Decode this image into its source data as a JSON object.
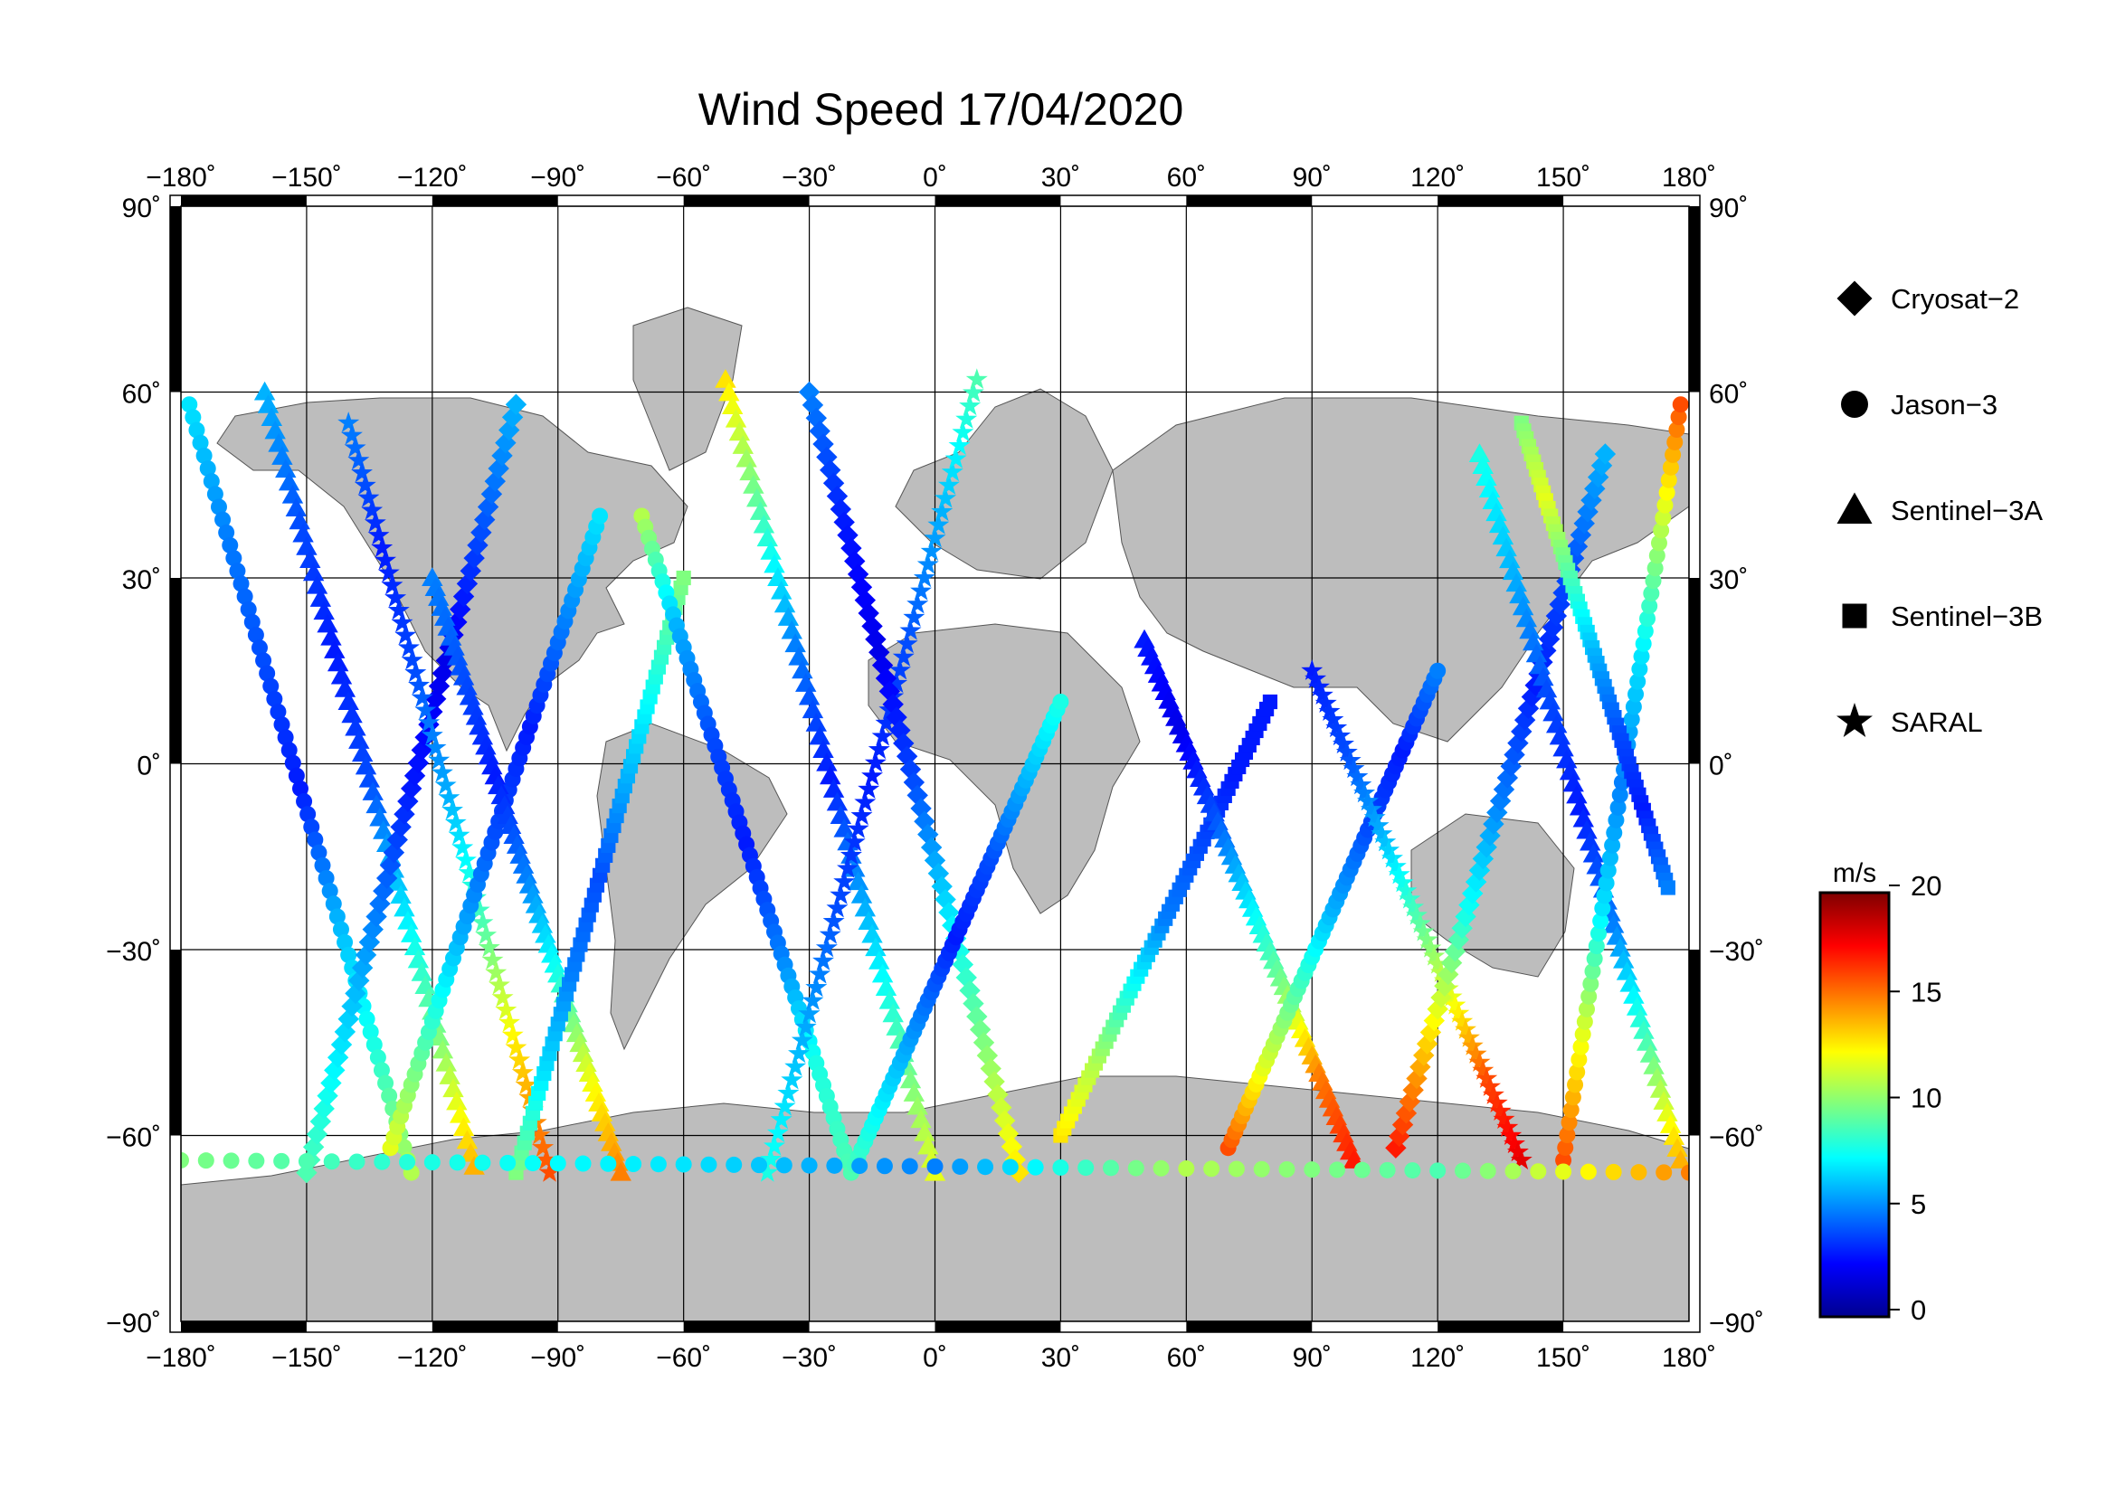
{
  "title": "Wind Speed 17/04/2020",
  "map": {
    "lon_range": [
      -180,
      180
    ],
    "lat_range": [
      -90,
      90
    ],
    "lon_ticks": [
      -180,
      -150,
      -120,
      -90,
      -60,
      -30,
      0,
      30,
      60,
      90,
      120,
      150,
      180
    ],
    "lat_ticks": [
      90,
      60,
      30,
      0,
      -30,
      -60,
      -90
    ],
    "lon_tick_labels": [
      "−180˚",
      "−150˚",
      "−120˚",
      "−90˚",
      "−60˚",
      "−30˚",
      "0˚",
      "30˚",
      "60˚",
      "90˚",
      "120˚",
      "150˚",
      "180˚"
    ],
    "lat_tick_labels": [
      "90˚",
      "60˚",
      "30˚",
      "0˚",
      "−30˚",
      "−60˚",
      "−90˚"
    ],
    "land_color": "#bdbdbd",
    "ocean_color": "#ffffff",
    "grid": true
  },
  "legend": {
    "placement": "right",
    "items": [
      {
        "label": "Cryosat−2",
        "marker": "diamond"
      },
      {
        "label": "Jason−3",
        "marker": "circle"
      },
      {
        "label": "Sentinel−3A",
        "marker": "triangle"
      },
      {
        "label": "Sentinel−3B",
        "marker": "square"
      },
      {
        "label": "SARAL",
        "marker": "star"
      }
    ]
  },
  "colorbar": {
    "unit": "m/s",
    "min": 0,
    "max": 20,
    "ticks": [
      0,
      5,
      10,
      15,
      20
    ],
    "colormap": "jet",
    "colors": [
      "#00008f",
      "#0000ff",
      "#007fff",
      "#00ffff",
      "#7fff7f",
      "#ffff00",
      "#ff7f00",
      "#ff0000",
      "#7f0000"
    ]
  },
  "chart_data": {
    "type": "scatter",
    "title": "Wind Speed 17/04/2020",
    "x_label": "",
    "y_label": "",
    "xlim": [
      -180,
      180
    ],
    "ylim": [
      -90,
      90
    ],
    "value_unit": "m/s",
    "value_range": [
      0,
      20
    ],
    "series": [
      {
        "name": "Cryosat−2",
        "marker": "diamond"
      },
      {
        "name": "Jason−3",
        "marker": "circle"
      },
      {
        "name": "Sentinel−3A",
        "marker": "triangle"
      },
      {
        "name": "Sentinel−3B",
        "marker": "square"
      },
      {
        "name": "SARAL",
        "marker": "star"
      }
    ],
    "tracks": [
      {
        "series": 1,
        "lon0": -178,
        "lat0": 58,
        "lon1": -125,
        "lat1": -66,
        "v": [
          7,
          5,
          4,
          3,
          6,
          8,
          11
        ]
      },
      {
        "series": 2,
        "lon0": -160,
        "lat0": 60,
        "lon1": -110,
        "lat1": -65,
        "v": [
          6,
          4,
          3,
          4,
          7,
          10,
          14
        ]
      },
      {
        "series": 0,
        "lon0": -150,
        "lat0": -66,
        "lon1": -100,
        "lat1": 58,
        "v": [
          9,
          7,
          5,
          3,
          2,
          4,
          6
        ]
      },
      {
        "series": 4,
        "lon0": -140,
        "lat0": 55,
        "lon1": -92,
        "lat1": -66,
        "v": [
          5,
          3,
          4,
          6,
          9,
          13,
          16
        ]
      },
      {
        "series": 1,
        "lon0": -130,
        "lat0": -62,
        "lon1": -80,
        "lat1": 40,
        "v": [
          12,
          9,
          6,
          4,
          3,
          5,
          7
        ]
      },
      {
        "series": 2,
        "lon0": -120,
        "lat0": 30,
        "lon1": -75,
        "lat1": -66,
        "v": [
          5,
          4,
          3,
          5,
          8,
          12,
          15
        ]
      },
      {
        "series": 3,
        "lon0": -100,
        "lat0": -66,
        "lon1": -60,
        "lat1": 30,
        "v": [
          10,
          7,
          5,
          4,
          6,
          8,
          10
        ]
      },
      {
        "series": 1,
        "lon0": -70,
        "lat0": 40,
        "lon1": -20,
        "lat1": -66,
        "v": [
          11,
          6,
          4,
          3,
          5,
          8,
          9
        ]
      },
      {
        "series": 2,
        "lon0": -50,
        "lat0": 62,
        "lon1": 0,
        "lat1": -66,
        "v": [
          13,
          9,
          5,
          3,
          6,
          9,
          12
        ]
      },
      {
        "series": 4,
        "lon0": -40,
        "lat0": -66,
        "lon1": 10,
        "lat1": 62,
        "v": [
          8,
          6,
          4,
          3,
          4,
          6,
          9
        ]
      },
      {
        "series": 0,
        "lon0": -30,
        "lat0": 60,
        "lon1": 20,
        "lat1": -66,
        "v": [
          5,
          3,
          2,
          4,
          7,
          10,
          13
        ]
      },
      {
        "series": 1,
        "lon0": -20,
        "lat0": -66,
        "lon1": 30,
        "lat1": 10,
        "v": [
          9,
          7,
          5,
          3,
          4,
          6,
          8
        ]
      },
      {
        "series": 3,
        "lon0": 30,
        "lat0": -60,
        "lon1": 80,
        "lat1": 10,
        "v": [
          13,
          11,
          8,
          5,
          4,
          3,
          3
        ]
      },
      {
        "series": 2,
        "lon0": 50,
        "lat0": 20,
        "lon1": 100,
        "lat1": -64,
        "v": [
          3,
          2,
          4,
          7,
          10,
          15,
          17
        ]
      },
      {
        "series": 1,
        "lon0": 70,
        "lat0": -62,
        "lon1": 120,
        "lat1": 15,
        "v": [
          16,
          12,
          9,
          6,
          4,
          3,
          5
        ]
      },
      {
        "series": 4,
        "lon0": 90,
        "lat0": 15,
        "lon1": 140,
        "lat1": -64,
        "v": [
          3,
          4,
          6,
          9,
          12,
          16,
          18
        ]
      },
      {
        "series": 0,
        "lon0": 110,
        "lat0": -62,
        "lon1": 160,
        "lat1": 50,
        "v": [
          17,
          13,
          8,
          5,
          3,
          4,
          6
        ]
      },
      {
        "series": 2,
        "lon0": 130,
        "lat0": 50,
        "lon1": 178,
        "lat1": -64,
        "v": [
          8,
          6,
          4,
          3,
          5,
          9,
          14
        ]
      },
      {
        "series": 1,
        "lon0": 150,
        "lat0": -64,
        "lon1": 178,
        "lat1": 58,
        "v": [
          16,
          12,
          7,
          5,
          7,
          11,
          16
        ]
      },
      {
        "series": 3,
        "lon0": 140,
        "lat0": 55,
        "lon1": 175,
        "lat1": -20,
        "v": [
          10,
          12,
          9,
          6,
          4,
          3,
          5
        ]
      },
      {
        "series": 1,
        "lon0": -180,
        "lat0": -64,
        "lon1": 180,
        "lat1": -66,
        "v": [
          10,
          8,
          7,
          5,
          11,
          9,
          15
        ]
      }
    ]
  }
}
